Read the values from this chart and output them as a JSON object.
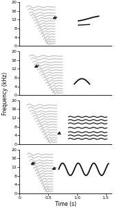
{
  "n_panels": 4,
  "xlim": [
    0,
    1.6
  ],
  "ylim": [
    0,
    20
  ],
  "ytick_labels": [
    "0",
    "4",
    "8",
    "12",
    "16",
    "20"
  ],
  "xtick_labels": [
    "0",
    "0.5",
    "1.0",
    "1.5"
  ],
  "xlabel": "Time (s)",
  "ylabel": "Frequency (kHz)",
  "gray_color": "#b8b8b8",
  "black_color": "#111111",
  "bg_color": "#ffffff",
  "linewidth_gray": 0.9,
  "linewidth_black": 1.3
}
